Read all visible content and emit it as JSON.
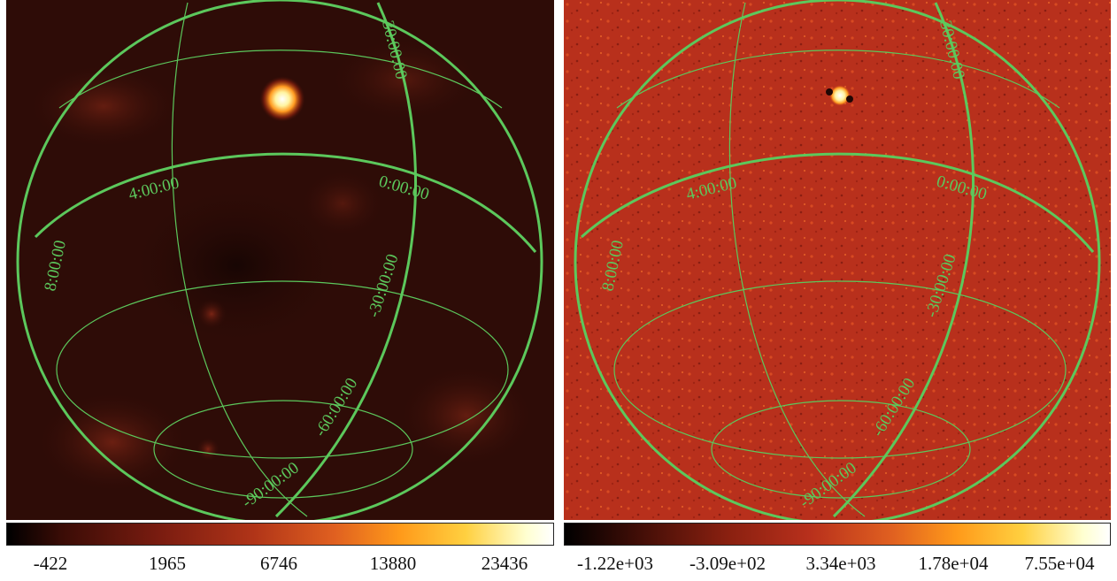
{
  "panels": [
    {
      "id": "left",
      "colormap": "heat",
      "colorbar_labels": [
        "-422",
        "1965",
        "6746",
        "13880",
        "23436"
      ],
      "grid_labels": {
        "lat_30": "30:00:00",
        "lon_4": "4:00:00",
        "lon_0": "0:00:00",
        "lon_8": "8:00:00",
        "lat_m30": "-30:00:00",
        "lat_m60": "-60:00:00",
        "lat_m90": "-90:00:00"
      }
    },
    {
      "id": "right",
      "colormap": "heat",
      "colorbar_labels": [
        "-1.22e+03",
        "-3.09e+02",
        "3.34e+03",
        "1.78e+04",
        "7.55e+04"
      ],
      "grid_labels": {
        "lat_30": "30:00:00",
        "lon_4": "4:00:00",
        "lon_0": "0:00:00",
        "lon_8": "8:00:00",
        "lat_m30": "-30:00:00",
        "lat_m60": "-60:00:00",
        "lat_m90": "-90:00:00"
      }
    }
  ],
  "colors": {
    "grid": "#5cc85c",
    "left_bg": "#2a0a06",
    "right_bg": "#b8301c"
  }
}
